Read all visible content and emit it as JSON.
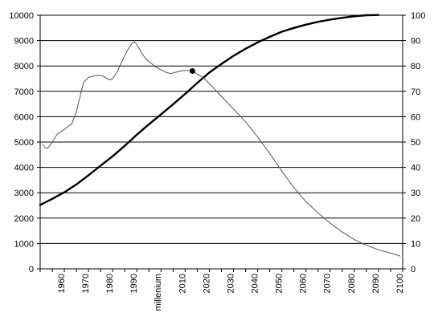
{
  "chart_data": {
    "type": "line",
    "title": "",
    "xlabel": "",
    "ylabel": "",
    "y2label": "",
    "xlim": [
      1950,
      2100
    ],
    "ylim": [
      0,
      10000
    ],
    "y2lim": [
      0,
      100
    ],
    "y_ticks": [
      "0",
      "1000",
      "2000",
      "3000",
      "4000",
      "5000",
      "6000",
      "7000",
      "8000",
      "9000",
      "10000"
    ],
    "y2_ticks": [
      "0",
      "10",
      "20",
      "30",
      "40",
      "50",
      "60",
      "70",
      "80",
      "90",
      "100"
    ],
    "x_tick_labels": [
      {
        "x": 1960,
        "label": "1960"
      },
      {
        "x": 1970,
        "label": "1970"
      },
      {
        "x": 1980,
        "label": "1980"
      },
      {
        "x": 1990,
        "label": "1990"
      },
      {
        "x": 2000,
        "label": "millenium"
      },
      {
        "x": 2010,
        "label": "2010"
      },
      {
        "x": 2020,
        "label": "2020"
      },
      {
        "x": 2030,
        "label": "2030"
      },
      {
        "x": 2040,
        "label": "2040"
      },
      {
        "x": 2050,
        "label": "2050"
      },
      {
        "x": 2060,
        "label": "2060"
      },
      {
        "x": 2070,
        "label": "2070"
      },
      {
        "x": 2080,
        "label": "2080"
      },
      {
        "x": 2090,
        "label": "2090"
      },
      {
        "x": 2100,
        "label": "2100"
      }
    ],
    "grid": true,
    "legend": "none",
    "series": [
      {
        "axis": "left",
        "color": "#000000",
        "style": "thick",
        "points": [
          [
            1950,
            2520
          ],
          [
            1955,
            2760
          ],
          [
            1960,
            3020
          ],
          [
            1965,
            3330
          ],
          [
            1970,
            3690
          ],
          [
            1975,
            4070
          ],
          [
            1980,
            4440
          ],
          [
            1985,
            4850
          ],
          [
            1990,
            5290
          ],
          [
            1995,
            5700
          ],
          [
            2000,
            6090
          ],
          [
            2005,
            6490
          ],
          [
            2010,
            6900
          ],
          [
            2015,
            7330
          ],
          [
            2020,
            7740
          ],
          [
            2025,
            8080
          ],
          [
            2030,
            8400
          ],
          [
            2035,
            8680
          ],
          [
            2040,
            8930
          ],
          [
            2045,
            9150
          ],
          [
            2050,
            9350
          ],
          [
            2055,
            9500
          ],
          [
            2060,
            9630
          ],
          [
            2065,
            9740
          ],
          [
            2070,
            9830
          ],
          [
            2075,
            9900
          ],
          [
            2080,
            9960
          ],
          [
            2085,
            10000
          ],
          [
            2090,
            10010
          ]
        ]
      },
      {
        "axis": "right",
        "color": "#555555",
        "style": "thin",
        "points": [
          [
            1951,
            49.0
          ],
          [
            1952,
            47.8
          ],
          [
            1953,
            47.6
          ],
          [
            1954,
            48.5
          ],
          [
            1955,
            50.0
          ],
          [
            1957,
            53.0
          ],
          [
            1960,
            55.0
          ],
          [
            1962,
            56.5
          ],
          [
            1963,
            57.0
          ],
          [
            1965,
            62.0
          ],
          [
            1966,
            66.0
          ],
          [
            1967,
            70.0
          ],
          [
            1968,
            73.5
          ],
          [
            1970,
            75.5
          ],
          [
            1972,
            76.0
          ],
          [
            1974,
            76.3
          ],
          [
            1976,
            76.0
          ],
          [
            1978,
            74.8
          ],
          [
            1979,
            74.5
          ],
          [
            1980,
            75.0
          ],
          [
            1982,
            78.0
          ],
          [
            1984,
            82.0
          ],
          [
            1986,
            86.0
          ],
          [
            1988,
            89.0
          ],
          [
            1989,
            89.5
          ],
          [
            1990,
            88.5
          ],
          [
            1992,
            85.0
          ],
          [
            1994,
            82.5
          ],
          [
            1996,
            81.0
          ],
          [
            1998,
            79.5
          ],
          [
            2000,
            78.5
          ],
          [
            2002,
            77.5
          ],
          [
            2004,
            77.0
          ],
          [
            2006,
            77.5
          ],
          [
            2008,
            78.0
          ],
          [
            2010,
            78.3
          ],
          [
            2013,
            78.0
          ],
          [
            2015,
            76.8
          ],
          [
            2018,
            75.0
          ],
          [
            2020,
            73.0
          ],
          [
            2025,
            68.0
          ],
          [
            2030,
            63.0
          ],
          [
            2035,
            58.0
          ],
          [
            2040,
            52.0
          ],
          [
            2045,
            45.5
          ],
          [
            2050,
            38.5
          ],
          [
            2055,
            32.0
          ],
          [
            2060,
            26.5
          ],
          [
            2065,
            22.0
          ],
          [
            2070,
            18.0
          ],
          [
            2075,
            14.5
          ],
          [
            2080,
            11.5
          ],
          [
            2085,
            9.3
          ],
          [
            2090,
            7.5
          ],
          [
            2095,
            6.2
          ],
          [
            2099,
            5.0
          ]
        ]
      }
    ],
    "markers": [
      {
        "x": 2013,
        "y": 78.0,
        "axis": "right",
        "color": "#000000"
      }
    ]
  }
}
